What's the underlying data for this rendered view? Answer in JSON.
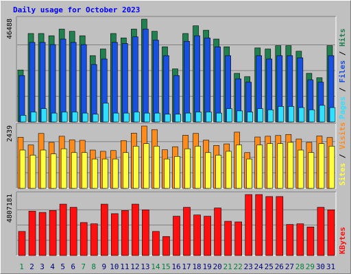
{
  "chart_data": {
    "type": "bar",
    "title": "Daily usage for October 2023",
    "categories": [
      "1",
      "2",
      "3",
      "4",
      "5",
      "6",
      "7",
      "8",
      "9",
      "10",
      "11",
      "12",
      "13",
      "14",
      "15",
      "16",
      "17",
      "18",
      "19",
      "20",
      "21",
      "22",
      "23",
      "24",
      "25",
      "26",
      "27",
      "28",
      "29",
      "30",
      "31"
    ],
    "weekend_days": [
      "1",
      "7",
      "8",
      "14",
      "15",
      "21",
      "22",
      "28",
      "29"
    ],
    "panels": [
      {
        "id": "hits",
        "max_label": "46488",
        "ylim": [
          0,
          46488
        ],
        "legend": [
          "Pages",
          "Files",
          "Hits"
        ],
        "series": [
          {
            "name": "Hits",
            "color": "#208050",
            "values": [
              23500,
              40000,
              40000,
              39000,
              42000,
              41000,
              39000,
              30000,
              33000,
              40000,
              38000,
              42000,
              46488,
              41000,
              34000,
              24000,
              40000,
              43500,
              41500,
              37500,
              34000,
              22000,
              20500,
              33500,
              33000,
              34500,
              34500,
              32000,
              22000,
              20000,
              34500
            ]
          },
          {
            "name": "Files",
            "color": "#1850e0",
            "values": [
              21000,
              36000,
              36000,
              35000,
              37500,
              36000,
              35000,
              26000,
              28500,
              36000,
              35500,
              38500,
              42000,
              37000,
              30000,
              21000,
              36500,
              39000,
              38000,
              34000,
              30000,
              19500,
              18000,
              30000,
              28500,
              30000,
              30000,
              29000,
              19000,
              18000,
              30000
            ]
          },
          {
            "name": "Pages",
            "color": "#30e0ff",
            "values": [
              3000,
              4500,
              6000,
              4000,
              4500,
              4500,
              4000,
              3500,
              8500,
              4000,
              4000,
              4500,
              4000,
              4000,
              3500,
              3500,
              4000,
              4500,
              4500,
              4000,
              6000,
              5000,
              4500,
              6000,
              5500,
              7000,
              7000,
              6500,
              5500,
              7500,
              6500
            ]
          }
        ]
      },
      {
        "id": "visits",
        "max_label": "2439",
        "ylim": [
          0,
          2439
        ],
        "legend": [
          "Sites",
          "Visits"
        ],
        "series": [
          {
            "name": "Visits",
            "color": "#ff8c1a",
            "values": [
              2000,
              1700,
              2150,
              1800,
              2040,
              1900,
              1880,
              1500,
              1450,
              1480,
              1870,
              2160,
              2440,
              2300,
              1510,
              1630,
              2080,
              2150,
              1890,
              1680,
              1740,
              2200,
              1400,
              2010,
              2040,
              2070,
              2110,
              1930,
              1800,
              2050,
              1990
            ]
          },
          {
            "name": "Sites",
            "color": "#ffff40",
            "values": [
              1500,
              1300,
              1500,
              1350,
              1550,
              1400,
              1400,
              1150,
              1150,
              1150,
              1400,
              1650,
              1750,
              1650,
              1150,
              1250,
              1550,
              1650,
              1400,
              1300,
              1450,
              1700,
              1150,
              1700,
              1750,
              1750,
              1800,
              1500,
              1400,
              1750,
              1650
            ]
          }
        ]
      },
      {
        "id": "kbytes",
        "max_label": "4807181",
        "ylim": [
          0,
          4807181
        ],
        "legend": [
          "KBytes"
        ],
        "series": [
          {
            "name": "KBytes",
            "color": "#ff1010",
            "values": [
              1900000,
              3500000,
              3400000,
              3550000,
              4050000,
              3800000,
              2600000,
              2500000,
              4050000,
              3300000,
              3550000,
              4050000,
              3600000,
              1900000,
              1500000,
              3100000,
              3800000,
              3200000,
              3100000,
              3750000,
              2700000,
              2650000,
              4807181,
              4807181,
              4650000,
              4650000,
              2450000,
              2500000,
              2250000,
              3800000,
              3600000
            ]
          }
        ]
      }
    ]
  },
  "colors": {
    "background": "#c0c0c0",
    "plot_background": "#c0c0c0",
    "title": "#0000ff",
    "weekday_label": "#000080",
    "weekend_label": "#008040",
    "grid": "#808080",
    "axis_label": "#000000"
  }
}
